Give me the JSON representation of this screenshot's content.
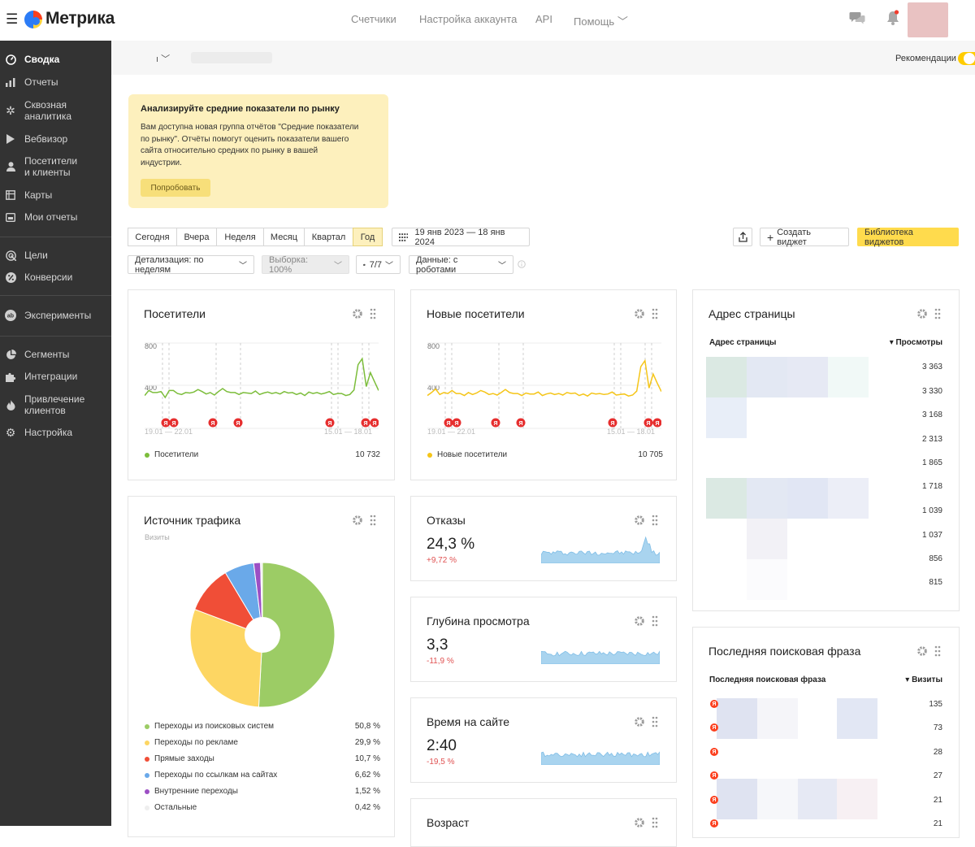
{
  "header": {
    "brand": "Метрика",
    "nav": [
      "Счетчики",
      "Настройка аккаунта",
      "API",
      "Помощь ﹀"
    ]
  },
  "sidebar": {
    "items": [
      {
        "label": "Сводка",
        "icon": "dashboard-icon",
        "active": true
      },
      {
        "label": "Отчеты",
        "icon": "bar-chart-icon"
      },
      {
        "label": "Сквозная аналитика",
        "icon": "snowflake-icon"
      },
      {
        "label": "Вебвизор",
        "icon": "play-icon"
      },
      {
        "label": "Посетители и клиенты",
        "icon": "person-icon"
      },
      {
        "label": "Карты",
        "icon": "map-icon"
      },
      {
        "label": "Мои отчеты",
        "icon": "folder-icon"
      },
      {
        "label": "Цели",
        "icon": "target-icon"
      },
      {
        "label": "Конверсии",
        "icon": "percent-icon"
      },
      {
        "label": "Эксперименты",
        "icon": "ab-icon"
      },
      {
        "label": "Сегменты",
        "icon": "pie-icon"
      },
      {
        "label": "Интеграции",
        "icon": "puzzle-icon"
      },
      {
        "label": "Привлечение клиентов",
        "icon": "flame-icon"
      },
      {
        "label": "Настройка",
        "icon": "gear-icon"
      }
    ]
  },
  "subbar": {
    "caret": "ı ﹀",
    "recommendations": "Рекомендации"
  },
  "promo": {
    "title": "Анализируйте средние показатели по рынку",
    "text": "Вам доступна новая группа отчётов \"Средние показатели по рынку\". Отчёты помогут оценить показатели вашего сайта относительно средних по рынку в вашей индустрии.",
    "button": "Попробовать"
  },
  "toolbar": {
    "periods": [
      "Сегодня",
      "Вчера",
      "Неделя",
      "Месяц",
      "Квартал",
      "Год"
    ],
    "selected_period": "Год",
    "date_range": "19 янв 2023 — 18 янв 2024",
    "create_widget": "Создать виджет",
    "widget_library": "Библиотека виджетов",
    "detail": "Детализация: по неделям",
    "sample": "Выборка: 100%",
    "attribution": "7/7",
    "data": "Данные: с роботами"
  },
  "visitors_card": {
    "title": "Посетители",
    "legend": "Посетители",
    "total": "10 732",
    "y_ticks": [
      "800",
      "400"
    ],
    "x_left": "19.01 — 22.01",
    "x_right": "15.01 — 18.01",
    "color": "#7cbd3b"
  },
  "new_visitors_card": {
    "title": "Новые посетители",
    "legend": "Новые посетители",
    "total": "10 705",
    "y_ticks": [
      "800",
      "400"
    ],
    "x_left": "19.01 — 22.01",
    "x_right": "15.01 — 18.01",
    "color": "#f5c518"
  },
  "traffic_card": {
    "title": "Источник трафика",
    "subtitle": "Визиты",
    "rows": [
      {
        "label": "Переходы из поисковых систем",
        "value": "50,8 %",
        "color": "#9ccc65"
      },
      {
        "label": "Переходы по рекламе",
        "value": "29,9 %",
        "color": "#fdd663"
      },
      {
        "label": "Прямые заходы",
        "value": "10,7 %",
        "color": "#f04e37"
      },
      {
        "label": "Переходы по ссылкам на сайтах",
        "value": "6,62 %",
        "color": "#6aa9e9"
      },
      {
        "label": "Внутренние переходы",
        "value": "1,52 %",
        "color": "#9c4fc4"
      },
      {
        "label": "Остальные",
        "value": "0,42 %",
        "color": "#eeeeee"
      }
    ]
  },
  "metrics": [
    {
      "title": "Отказы",
      "value": "24,3 %",
      "delta": "+9,72 %"
    },
    {
      "title": "Глубина просмотра",
      "value": "3,3",
      "delta": "-11,9 %"
    },
    {
      "title": "Время на сайте",
      "value": "2:40",
      "delta": "-19,5 %"
    },
    {
      "title": "Возраст"
    }
  ],
  "pages_card": {
    "title": "Адрес страницы",
    "col_label": "Адрес страницы",
    "col_metric": "▾ Просмотры",
    "values": [
      "3 363",
      "3 330",
      "3 168",
      "2 313",
      "1 865",
      "1 718",
      "1 039",
      "1 037",
      "856",
      "815"
    ]
  },
  "search_card": {
    "title": "Последняя поисковая фраза",
    "col_label": "Последняя поисковая фраза",
    "col_metric": "▾ Визиты",
    "values": [
      "135",
      "73",
      "28",
      "27",
      "21",
      "21"
    ]
  },
  "chart_data": [
    {
      "type": "line",
      "series": [
        {
          "name": "Посетители",
          "values": [
            330,
            380,
            360,
            360,
            370,
            310,
            380,
            380,
            350,
            340,
            360,
            355,
            365,
            390,
            370,
            345,
            360,
            335,
            370,
            400,
            370,
            360,
            360,
            340,
            360,
            355,
            350,
            375,
            340,
            355,
            365,
            350,
            360,
            345,
            370,
            355,
            360,
            340,
            355,
            330,
            365,
            350,
            360,
            345,
            355,
            370,
            340,
            350,
            350,
            330,
            340,
            385,
            640,
            700,
            420,
            560,
            470,
            380
          ]
        }
      ],
      "ylim": [
        0,
        900
      ]
    },
    {
      "type": "line",
      "series": [
        {
          "name": "Новые посетители",
          "values": [
            330,
            360,
            395,
            340,
            360,
            350,
            380,
            350,
            350,
            330,
            360,
            340,
            355,
            380,
            365,
            340,
            350,
            335,
            360,
            390,
            360,
            350,
            350,
            330,
            355,
            345,
            345,
            365,
            330,
            345,
            355,
            340,
            350,
            335,
            360,
            350,
            355,
            330,
            345,
            325,
            355,
            345,
            350,
            340,
            345,
            365,
            335,
            340,
            345,
            325,
            335,
            375,
            620,
            680,
            405,
            545,
            455,
            370
          ]
        }
      ],
      "ylim": [
        0,
        900
      ]
    },
    {
      "type": "pie",
      "categories": [
        "Переходы из поисковых систем",
        "Переходы по рекламе",
        "Прямые заходы",
        "Переходы по ссылкам на сайтах",
        "Внутренние переходы",
        "Остальные"
      ],
      "values": [
        50.8,
        29.9,
        10.7,
        6.62,
        1.52,
        0.42
      ]
    }
  ]
}
